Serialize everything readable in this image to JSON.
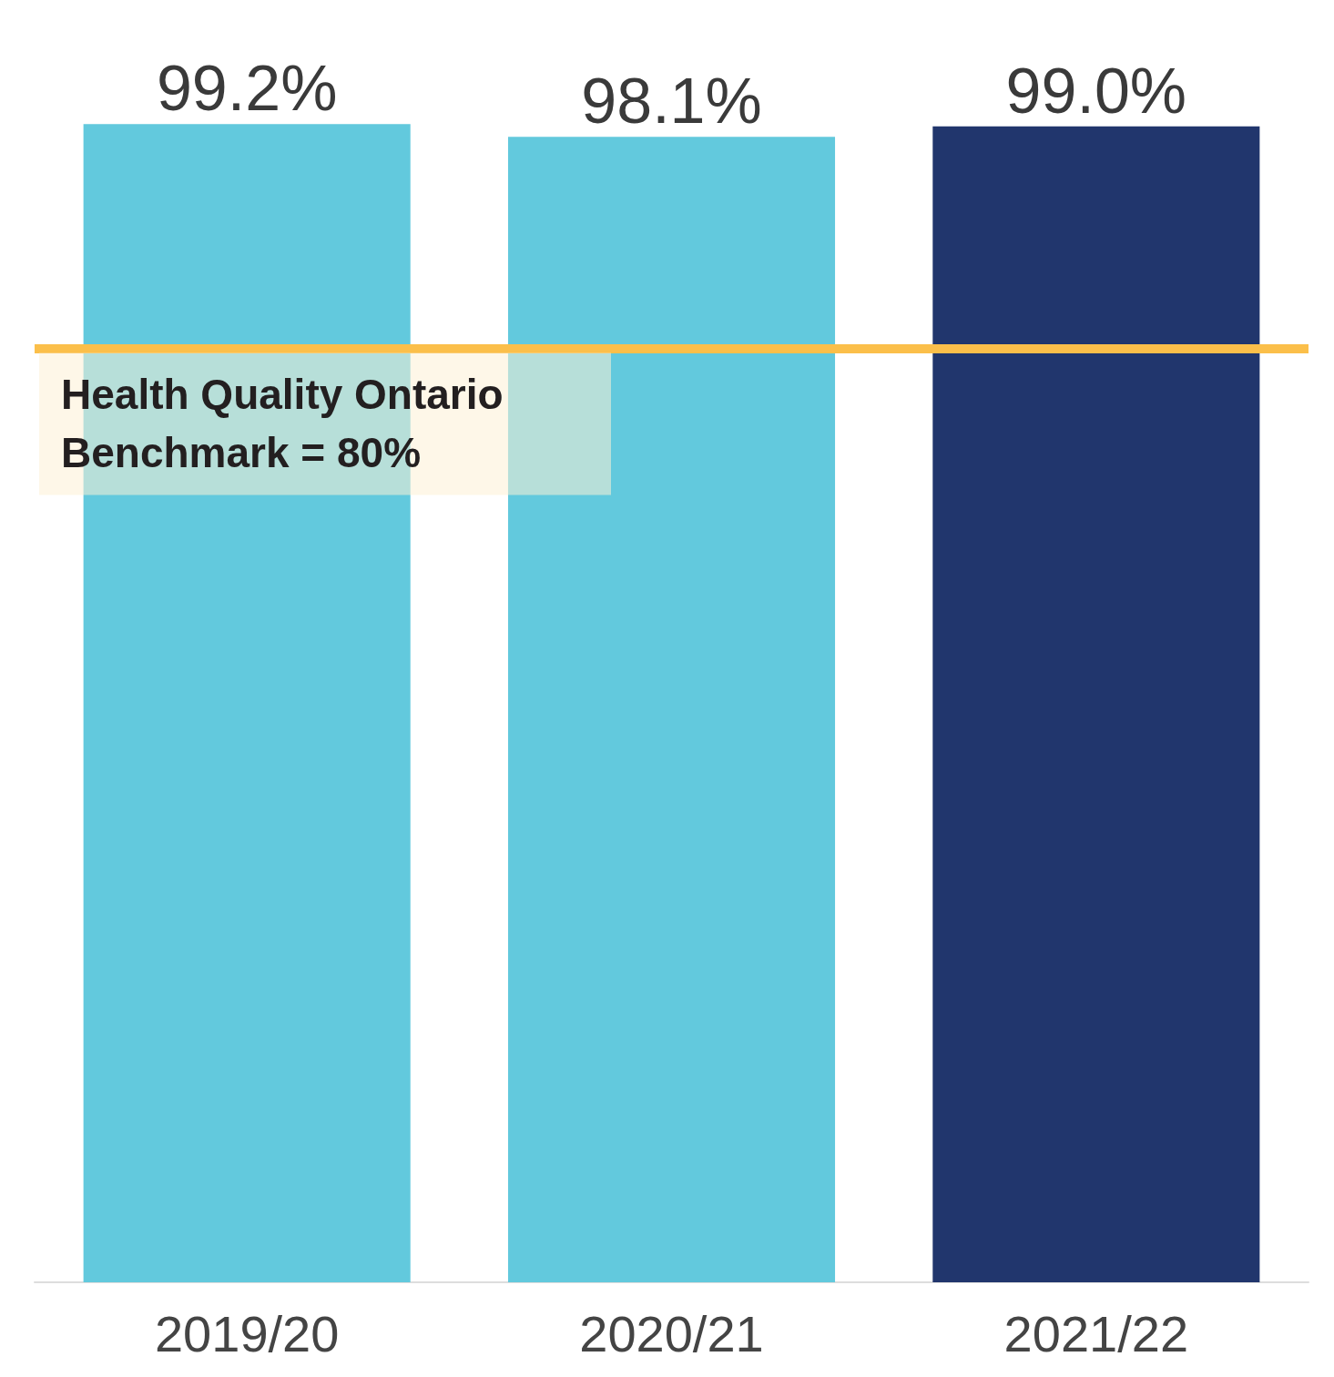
{
  "chart_data": {
    "type": "bar",
    "categories": [
      "2019/20",
      "2020/21",
      "2021/22"
    ],
    "values": [
      99.2,
      98.1,
      99.0
    ],
    "colors": [
      "#62c9dd",
      "#62c9dd",
      "#21366d"
    ],
    "value_labels": [
      "99.2%",
      "98.1%",
      "99.0%"
    ],
    "ref_lines": [
      {
        "axis": "y",
        "value": 80,
        "label": "Health Quality Ontario Benchmark = 80%",
        "color": "#fbbf4a"
      }
    ],
    "xlabel": null
  }
}
